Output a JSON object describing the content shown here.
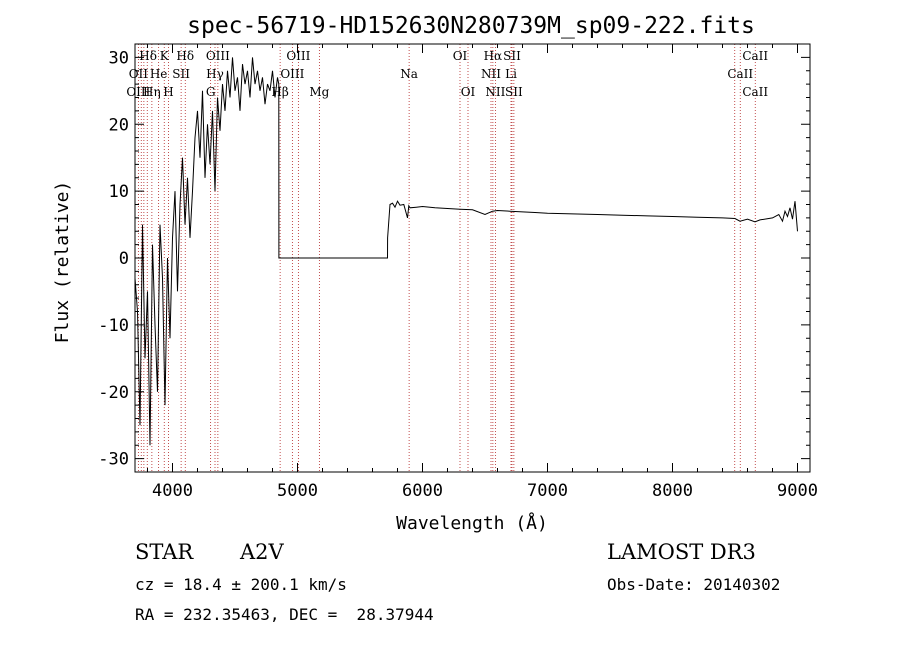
{
  "chart_data": {
    "type": "line",
    "title": "spec-56719-HD152630N280739M_sp09-222.fits",
    "xlabel": "Wavelength (Å)",
    "ylabel": "Flux (relative)",
    "xlim": [
      3700,
      9100
    ],
    "ylim": [
      -32,
      32
    ],
    "xticks": [
      4000,
      5000,
      6000,
      7000,
      8000,
      9000
    ],
    "yticks": [
      -30,
      -20,
      -10,
      0,
      10,
      20,
      30
    ],
    "series": [
      {
        "name": "flux",
        "x": [
          3700,
          3720,
          3740,
          3760,
          3780,
          3800,
          3820,
          3840,
          3860,
          3880,
          3900,
          3920,
          3940,
          3960,
          3980,
          4000,
          4020,
          4040,
          4060,
          4080,
          4100,
          4120,
          4140,
          4160,
          4180,
          4200,
          4220,
          4240,
          4260,
          4280,
          4300,
          4320,
          4340,
          4360,
          4380,
          4400,
          4420,
          4440,
          4460,
          4480,
          4500,
          4520,
          4540,
          4560,
          4580,
          4600,
          4620,
          4640,
          4660,
          4680,
          4700,
          4720,
          4740,
          4760,
          4780,
          4800,
          4820,
          4840,
          4850,
          4851,
          5000,
          5200,
          5400,
          5600,
          5720,
          5721,
          5740,
          5760,
          5780,
          5800,
          5820,
          5850,
          5880,
          5890,
          5900,
          5950,
          6000,
          6100,
          6200,
          6300,
          6400,
          6500,
          6560,
          6600,
          6700,
          6800,
          6900,
          7000,
          7200,
          7400,
          7600,
          7800,
          8000,
          8200,
          8400,
          8500,
          8540,
          8600,
          8660,
          8700,
          8800,
          8850,
          8880,
          8900,
          8920,
          8940,
          8960,
          8980,
          9000
        ],
        "y": [
          -3,
          -8,
          -25,
          5,
          -15,
          -5,
          -28,
          2,
          -10,
          -20,
          5,
          -3,
          -22,
          0,
          -12,
          3,
          10,
          -5,
          8,
          15,
          5,
          12,
          3,
          10,
          18,
          22,
          15,
          25,
          12,
          20,
          14,
          22,
          10,
          24,
          19,
          26,
          22,
          28,
          24,
          30,
          25,
          27,
          22,
          29,
          26,
          28,
          24,
          30,
          26,
          28,
          25,
          27,
          23,
          26,
          25,
          28,
          24,
          27,
          26,
          0,
          0,
          0,
          0,
          0,
          0,
          3,
          8,
          8.2,
          7.6,
          8.5,
          7.9,
          8,
          6,
          7.8,
          7.5,
          7.6,
          7.7,
          7.5,
          7.4,
          7.3,
          7.2,
          6.5,
          7,
          7.1,
          7,
          6.9,
          6.8,
          6.7,
          6.6,
          6.5,
          6.4,
          6.3,
          6.2,
          6.1,
          6,
          5.9,
          5.5,
          5.8,
          5.4,
          5.7,
          6,
          6.5,
          5.5,
          7,
          6.2,
          7.5,
          5.8,
          8.5,
          4
        ]
      }
    ],
    "spectral_lines": [
      {
        "label": "Hδ",
        "x": 3805,
        "row": 0
      },
      {
        "label": "K",
        "x": 3934,
        "row": 0
      },
      {
        "label": "Hδ",
        "x": 4102,
        "row": 0
      },
      {
        "label": "OIII",
        "x": 4363,
        "row": 0
      },
      {
        "label": "OIII",
        "x": 5007,
        "row": 0
      },
      {
        "label": "OI",
        "x": 6300,
        "row": 0
      },
      {
        "label": "Hα",
        "x": 6563,
        "row": 0
      },
      {
        "label": "SII",
        "x": 6716,
        "row": 0
      },
      {
        "label": "CaII",
        "x": 8662,
        "row": 0
      },
      {
        "label": "OII",
        "x": 3727,
        "row": 1
      },
      {
        "label": "He",
        "x": 3889,
        "row": 1
      },
      {
        "label": "SII",
        "x": 4069,
        "row": 1
      },
      {
        "label": "Hγ",
        "x": 4340,
        "row": 1
      },
      {
        "label": "OIII",
        "x": 4959,
        "row": 1
      },
      {
        "label": "Na",
        "x": 5893,
        "row": 1
      },
      {
        "label": "NII",
        "x": 6548,
        "row": 1
      },
      {
        "label": "Li",
        "x": 6708,
        "row": 1
      },
      {
        "label": "CaII",
        "x": 8542,
        "row": 1
      },
      {
        "label": "OIII",
        "x": 3727,
        "row": 2
      },
      {
        "label": "Hη",
        "x": 3835,
        "row": 2
      },
      {
        "label": "H",
        "x": 3968,
        "row": 2
      },
      {
        "label": "G",
        "x": 4305,
        "row": 2
      },
      {
        "label": "Hβ",
        "x": 4861,
        "row": 2
      },
      {
        "label": "Mg",
        "x": 5175,
        "row": 2
      },
      {
        "label": "OI",
        "x": 6364,
        "row": 2
      },
      {
        "label": "NII",
        "x": 6583,
        "row": 2
      },
      {
        "label": "SII",
        "x": 6731,
        "row": 2
      },
      {
        "label": "CaII",
        "x": 8662,
        "row": 2
      }
    ],
    "line_marker_x": [
      3727,
      3750,
      3771,
      3798,
      3835,
      3889,
      3934,
      3968,
      4069,
      4102,
      4305,
      4340,
      4363,
      4861,
      4959,
      5007,
      5175,
      5893,
      6300,
      6364,
      6548,
      6563,
      6583,
      6708,
      6716,
      6731,
      8498,
      8542,
      8662
    ],
    "colors": {
      "line_marker": "#b22222",
      "spectrum": "#000000",
      "axis": "#000000"
    }
  },
  "info": {
    "object_class": "STAR",
    "subclass": "A2V",
    "survey": "LAMOST DR3",
    "cz": "cz = 18.4 ± 200.1 km/s",
    "obs_date": "Obs-Date: 20140302",
    "coords": "RA = 232.35463, DEC =  28.37944"
  }
}
